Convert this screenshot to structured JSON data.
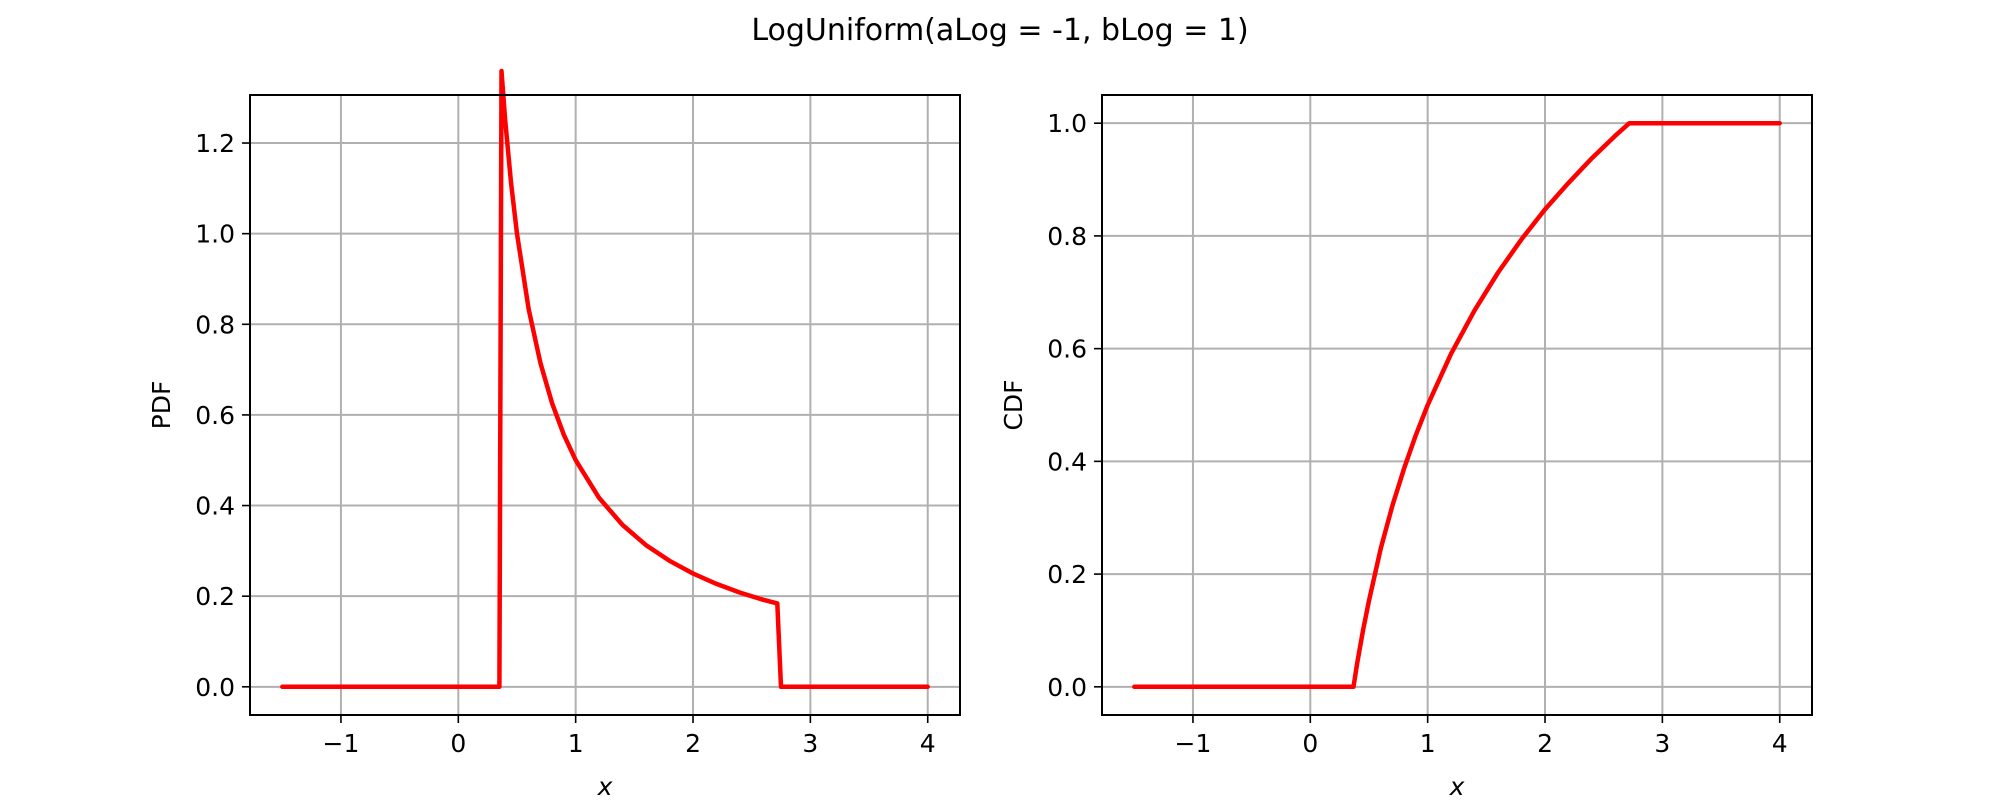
{
  "figure": {
    "title": "LogUniform(aLog = -1, bLog = 1)"
  },
  "colors": {
    "curve": "#ff0000",
    "grid": "#b0b0b0"
  },
  "chart_data": [
    {
      "type": "line",
      "title": "",
      "xlabel": "x",
      "ylabel": "PDF",
      "xlim": [
        -1.775,
        4.275
      ],
      "ylim": [
        -0.0622,
        1.306
      ],
      "xticks": [
        -1,
        0,
        1,
        2,
        3,
        4
      ],
      "xtick_labels": [
        "−1",
        "0",
        "1",
        "2",
        "3",
        "4"
      ],
      "yticks": [
        0.0,
        0.2,
        0.4,
        0.6,
        0.8,
        1.0,
        1.2
      ],
      "ytick_labels": [
        "0.0",
        "0.2",
        "0.4",
        "0.6",
        "0.8",
        "1.0",
        "1.2"
      ],
      "grid": true,
      "series": [
        {
          "x": [
            -1.5,
            0.35,
            0.3679,
            0.4,
            0.45,
            0.5,
            0.6,
            0.7,
            0.8,
            0.9,
            1.0,
            1.2,
            1.4,
            1.6,
            1.8,
            2.0,
            2.2,
            2.4,
            2.6,
            2.7183,
            2.75,
            4.0
          ],
          "y": [
            0.0,
            0.0,
            1.359,
            1.25,
            1.111,
            1.0,
            0.833,
            0.714,
            0.625,
            0.556,
            0.5,
            0.417,
            0.357,
            0.3125,
            0.278,
            0.25,
            0.227,
            0.208,
            0.192,
            0.184,
            0.0,
            0.0
          ]
        }
      ]
    },
    {
      "type": "line",
      "title": "",
      "xlabel": "x",
      "ylabel": "CDF",
      "xlim": [
        -1.775,
        4.275
      ],
      "ylim": [
        -0.05,
        1.05
      ],
      "xticks": [
        -1,
        0,
        1,
        2,
        3,
        4
      ],
      "xtick_labels": [
        "−1",
        "0",
        "1",
        "2",
        "3",
        "4"
      ],
      "yticks": [
        0.0,
        0.2,
        0.4,
        0.6,
        0.8,
        1.0
      ],
      "ytick_labels": [
        "0.0",
        "0.2",
        "0.4",
        "0.6",
        "0.8",
        "1.0"
      ],
      "grid": true,
      "series": [
        {
          "x": [
            -1.5,
            0.3679,
            0.4,
            0.45,
            0.5,
            0.6,
            0.7,
            0.8,
            0.9,
            1.0,
            1.2,
            1.4,
            1.6,
            1.8,
            2.0,
            2.2,
            2.4,
            2.6,
            2.7183,
            4.0
          ],
          "y": [
            0.0,
            0.0,
            0.042,
            0.101,
            0.153,
            0.245,
            0.322,
            0.388,
            0.447,
            0.5,
            0.591,
            0.668,
            0.735,
            0.794,
            0.847,
            0.894,
            0.938,
            0.978,
            1.0,
            1.0
          ]
        }
      ]
    }
  ]
}
